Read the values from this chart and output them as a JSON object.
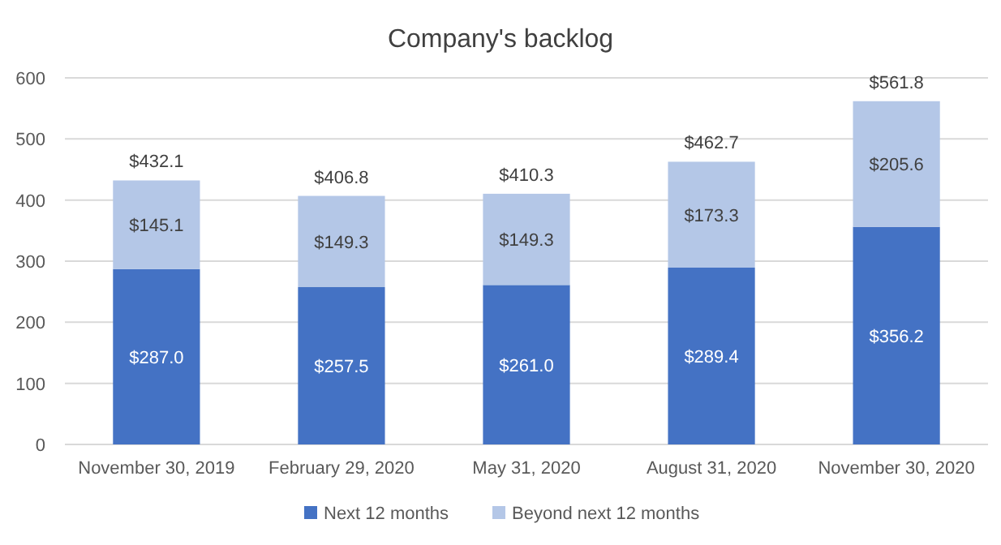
{
  "chart_data": {
    "type": "bar",
    "title": "Company's backlog",
    "stacked": true,
    "categories": [
      "November 30, 2019",
      "February 29, 2020",
      "May 31, 2020",
      "August 31, 2020",
      "November 30, 2020"
    ],
    "series": [
      {
        "name": "Next 12 months",
        "color": "#4472c4",
        "values": [
          287.0,
          257.5,
          261.0,
          289.4,
          356.2
        ],
        "value_labels": [
          "$287.0",
          "$257.5",
          "$261.0",
          "$289.4",
          "$356.2"
        ]
      },
      {
        "name": "Beyond next 12 months",
        "color": "#b4c7e7",
        "values": [
          145.1,
          149.3,
          149.3,
          173.3,
          205.6
        ],
        "value_labels": [
          "$145.1",
          "$149.3",
          "$149.3",
          "$173.3",
          "$205.6"
        ]
      }
    ],
    "totals": [
      "$432.1",
      "$406.8",
      "$410.3",
      "$462.7",
      "$561.8"
    ],
    "ylim": [
      0,
      600
    ],
    "yticks": [
      0,
      100,
      200,
      300,
      400,
      500,
      600
    ],
    "grid": "y",
    "legend": "bottom"
  }
}
